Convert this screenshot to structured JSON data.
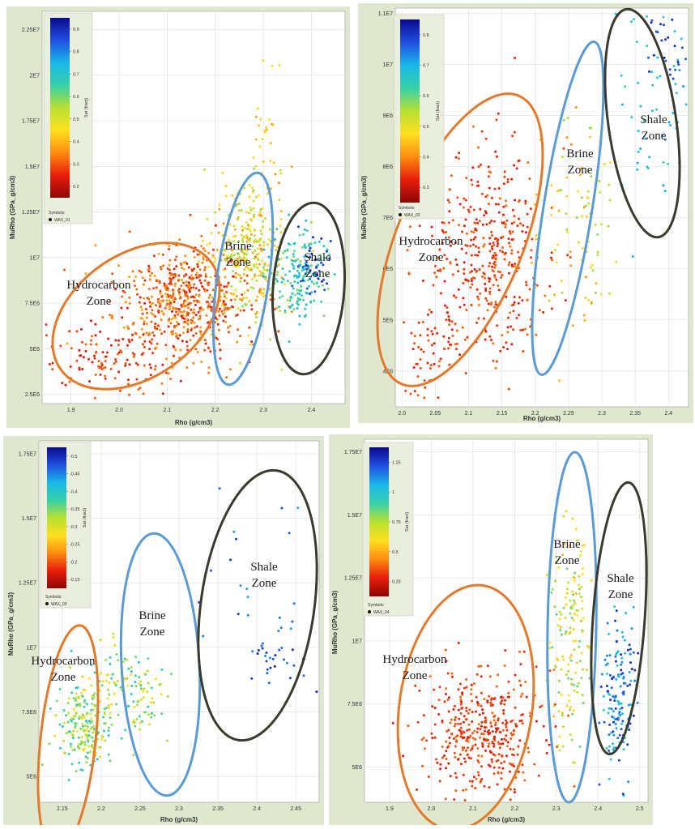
{
  "colors": {
    "hydrocarbon": "#e5792a",
    "brine": "#5b9bd5",
    "shale": "#3a3a2e",
    "frame": "#dfe8cf",
    "colorbar": [
      "#0a0a8c",
      "#1f4fe0",
      "#19b8e8",
      "#38d0a8",
      "#b8e030",
      "#ffe020",
      "#ff8c10",
      "#e81e0c",
      "#8c0606"
    ]
  },
  "chart_data": [
    {
      "type": "scatter",
      "xlabel": "Rho  (g/cm3)",
      "ylabel": "MuRho  (GPa_g/cm3)",
      "x_ticks": [
        "1.9",
        "2.0",
        "2.1",
        "2.2",
        "2.3",
        "2.4"
      ],
      "y_ticks": [
        "2.5E6",
        "5E6",
        "7.5E6",
        "1E7",
        "1.25E7",
        "1.5E7",
        "1.75E7",
        "2E7",
        "2.25E7"
      ],
      "xlim": [
        1.84,
        2.47
      ],
      "ylim": [
        2000000,
        23500000
      ],
      "colorbar_label": "Sat (fract)",
      "colorbar_ticks": [
        "0.2",
        "0.3",
        "0.4",
        "0.5",
        "0.6",
        "0.7",
        "0.8",
        "0.9"
      ],
      "legend_title": "Symbols:",
      "legend_entry": "WAX_01",
      "zones": [
        "Hydrocarbon\nZone",
        "Brine\nZone",
        "Shale\nZone"
      ],
      "clusters": [
        {
          "zone": "hydrocarbon",
          "n": 600,
          "x": 2.13,
          "y": 7600000,
          "sx": 0.07,
          "sy": 1500000,
          "color_lo": 0.7,
          "color_hi": 0.9
        },
        {
          "zone": "hydrocarbon",
          "n": 120,
          "x": 1.97,
          "y": 4500000,
          "sx": 0.06,
          "sy": 900000,
          "color_lo": 0.78,
          "color_hi": 0.9
        },
        {
          "zone": "brine",
          "n": 320,
          "x": 2.27,
          "y": 10500000,
          "sx": 0.04,
          "sy": 2000000,
          "color_lo": 0.45,
          "color_hi": 0.75
        },
        {
          "zone": "brine",
          "n": 30,
          "x": 2.3,
          "y": 16000000,
          "sx": 0.02,
          "sy": 2500000,
          "color_lo": 0.55,
          "color_hi": 0.75
        },
        {
          "zone": "shale",
          "n": 160,
          "x": 2.37,
          "y": 9000000,
          "sx": 0.03,
          "sy": 1200000,
          "color_lo": 0.25,
          "color_hi": 0.45
        },
        {
          "zone": "shale",
          "n": 40,
          "x": 2.4,
          "y": 9500000,
          "sx": 0.02,
          "sy": 700000,
          "color_lo": 0.05,
          "color_hi": 0.15
        }
      ]
    },
    {
      "type": "scatter",
      "xlabel": "Rho  (g/cm3)",
      "ylabel": "MuRho  (GPa_g/cm3)",
      "x_ticks": [
        "2.0",
        "2.05",
        "2.1",
        "2.15",
        "2.2",
        "2.25",
        "2.3",
        "2.35",
        "2.4"
      ],
      "y_ticks": [
        "4E6",
        "5E6",
        "6E6",
        "7E6",
        "8E6",
        "9E6",
        "1E7",
        "1.1E7"
      ],
      "xlim": [
        1.99,
        2.43
      ],
      "ylim": [
        3300000,
        11100000
      ],
      "colorbar_label": "Sat (fract)",
      "colorbar_ticks": [
        "0.3",
        "0.4",
        "0.5",
        "0.6",
        "0.7",
        "0.8"
      ],
      "legend_title": "Symbols:",
      "legend_entry": "WAX_02",
      "zones": [
        "Hydrocarbon\nZone",
        "Brine\nZone",
        "Shale\nZone"
      ],
      "clusters": [
        {
          "zone": "hydrocarbon",
          "n": 420,
          "x": 2.13,
          "y": 6300000,
          "sx": 0.045,
          "sy": 1000000,
          "color_lo": 0.78,
          "color_hi": 0.9
        },
        {
          "zone": "hydrocarbon",
          "n": 60,
          "x": 2.04,
          "y": 4300000,
          "sx": 0.025,
          "sy": 500000,
          "color_lo": 0.8,
          "color_hi": 0.9
        },
        {
          "zone": "brine",
          "n": 90,
          "x": 2.26,
          "y": 6700000,
          "sx": 0.03,
          "sy": 1200000,
          "color_lo": 0.45,
          "color_hi": 0.75
        },
        {
          "zone": "shale",
          "n": 60,
          "x": 2.38,
          "y": 9300000,
          "sx": 0.03,
          "sy": 900000,
          "color_lo": 0.2,
          "color_hi": 0.4
        },
        {
          "zone": "shale",
          "n": 25,
          "x": 2.4,
          "y": 10200000,
          "sx": 0.02,
          "sy": 400000,
          "color_lo": 0.05,
          "color_hi": 0.15
        }
      ]
    },
    {
      "type": "scatter",
      "xlabel": "Rho  (g/cm3)",
      "ylabel": "MuRho  (GPa_g/cm3)",
      "x_ticks": [
        "2.15",
        "2.2",
        "2.25",
        "2.3",
        "2.35",
        "2.4",
        "2.45"
      ],
      "y_ticks": [
        "5E6",
        "7.5E6",
        "1E7",
        "1.25E7",
        "1.5E7",
        "1.75E7"
      ],
      "xlim": [
        2.12,
        2.48
      ],
      "ylim": [
        4000000,
        18000000
      ],
      "colorbar_label": "Sat (fract)",
      "colorbar_ticks": [
        "-0.15",
        "-0.2",
        "-0.25",
        "-0.3",
        "-0.35",
        "-0.4",
        "-0.45",
        "-0.5"
      ],
      "legend_title": "Symbols:",
      "legend_entry": "WAX_03",
      "zones": [
        "Hydrocarbon\nZone",
        "Brine\nZone",
        "Shale\nZone"
      ],
      "clusters": [
        {
          "zone": "hydrocarbon",
          "n": 220,
          "x": 2.18,
          "y": 7000000,
          "sx": 0.018,
          "sy": 900000,
          "color_lo": 0.3,
          "color_hi": 0.65
        },
        {
          "zone": "brine",
          "n": 110,
          "x": 2.24,
          "y": 8400000,
          "sx": 0.022,
          "sy": 900000,
          "color_lo": 0.3,
          "color_hi": 0.65
        },
        {
          "zone": "shale",
          "n": 30,
          "x": 2.42,
          "y": 9600000,
          "sx": 0.015,
          "sy": 600000,
          "color_lo": 0.05,
          "color_hi": 0.2
        },
        {
          "zone": "shale",
          "n": 22,
          "x": 2.4,
          "y": 13500000,
          "sx": 0.05,
          "sy": 2300000,
          "color_lo": 0.05,
          "color_hi": 0.25
        }
      ]
    },
    {
      "type": "scatter",
      "xlabel": "Rho  (g/cm3)",
      "ylabel": "MuRho  (GPa_g/cm3)",
      "x_ticks": [
        "1.9",
        "2.0",
        "2.1",
        "2.2",
        "2.3",
        "2.4",
        "2.5"
      ],
      "y_ticks": [
        "5E6",
        "7.5E6",
        "1E7",
        "1.25E7",
        "1.5E7",
        "1.75E7"
      ],
      "xlim": [
        1.84,
        2.52
      ],
      "ylim": [
        3600000,
        18000000
      ],
      "colorbar_label": "Sat (fract)",
      "colorbar_ticks": [
        "0.25",
        "0.5",
        "0.75",
        "1",
        "1.25"
      ],
      "legend_title": "Symbols:",
      "legend_entry": "WAX_04",
      "zones": [
        "Hydrocarbon\nZone",
        "Brine\nZone",
        "Shale\nZone"
      ],
      "clusters": [
        {
          "zone": "hydrocarbon",
          "n": 420,
          "x": 2.12,
          "y": 6300000,
          "sx": 0.07,
          "sy": 1200000,
          "color_lo": 0.78,
          "color_hi": 0.9
        },
        {
          "zone": "brine",
          "n": 150,
          "x": 2.33,
          "y": 10000000,
          "sx": 0.025,
          "sy": 2000000,
          "color_lo": 0.4,
          "color_hi": 0.7
        },
        {
          "zone": "shale",
          "n": 150,
          "x": 2.45,
          "y": 8000000,
          "sx": 0.02,
          "sy": 1800000,
          "color_lo": 0.05,
          "color_hi": 0.35
        }
      ]
    }
  ]
}
